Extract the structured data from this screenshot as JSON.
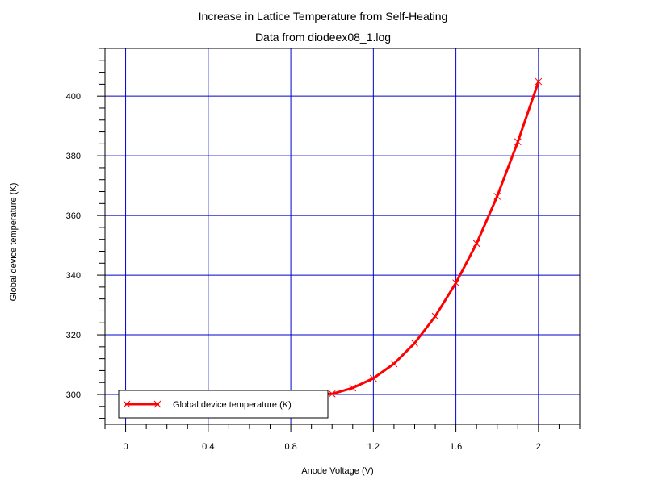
{
  "chart_data": {
    "type": "line",
    "title": "Increase in Lattice Temperature from Self-Heating",
    "subtitle": "Data from diodeex08_1.log",
    "xlabel": "Anode Voltage (V)",
    "ylabel": "Global device temperature (K)",
    "xlim": [
      -0.1,
      2.2
    ],
    "ylim": [
      290,
      416
    ],
    "x_ticks": [
      0,
      0.4,
      0.8,
      1.2,
      1.6,
      2
    ],
    "y_ticks": [
      300,
      320,
      340,
      360,
      380,
      400
    ],
    "grid": true,
    "legend_position": "bottom-left",
    "colors": {
      "grid": "#0000cc",
      "series": "#ff0000"
    },
    "series": [
      {
        "name": "Global device temperature (K)",
        "x": [
          0,
          0.1,
          0.2,
          0.3,
          0.4,
          0.5,
          0.6,
          0.7,
          0.8,
          0.9,
          1.0,
          1.1,
          1.2,
          1.3,
          1.4,
          1.5,
          1.6,
          1.7,
          1.8,
          1.9,
          2.0
        ],
        "y": [
          300,
          300,
          300,
          300,
          300,
          300,
          300,
          300,
          300,
          300,
          300.2,
          302.2,
          305.4,
          310.3,
          317.2,
          326.2,
          337.4,
          350.6,
          366.4,
          384.7,
          404.9
        ]
      }
    ]
  }
}
